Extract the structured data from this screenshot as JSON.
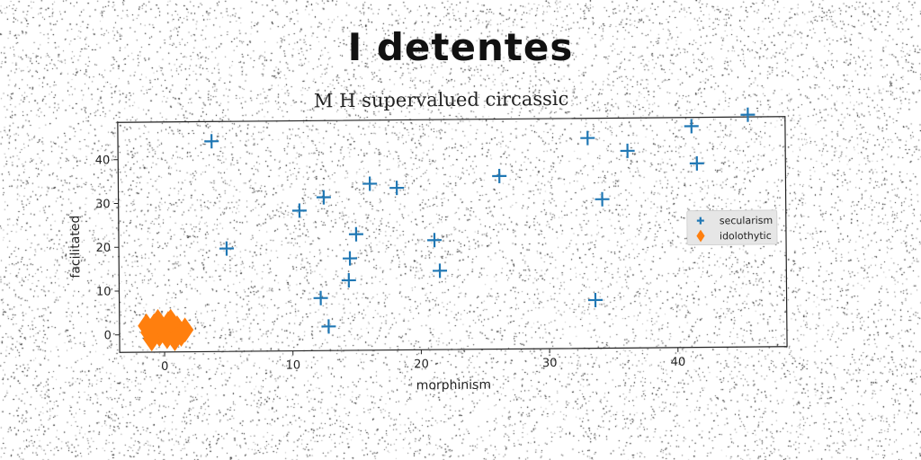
{
  "figure": {
    "title": "I detentes"
  },
  "chart_data": {
    "type": "scatter",
    "title": "M H supervalued circassic",
    "xlabel": "morphinism",
    "ylabel": "facilitated",
    "xlim": [
      -3.5,
      48.5
    ],
    "ylim": [
      -4,
      48.5
    ],
    "xticks": [
      0,
      10,
      20,
      30,
      40
    ],
    "yticks": [
      0,
      10,
      20,
      30,
      40
    ],
    "grid": false,
    "legend_position": "right",
    "series": [
      {
        "name": "secularism",
        "marker": "plus",
        "color": "#1f77b4",
        "points": [
          [
            3.8,
            44
          ],
          [
            4.9,
            19.5
          ],
          [
            10.6,
            28
          ],
          [
            12.2,
            8
          ],
          [
            12.8,
            1.5
          ],
          [
            12.5,
            31
          ],
          [
            14.5,
            17
          ],
          [
            14.4,
            12
          ],
          [
            15,
            22.5
          ],
          [
            16.1,
            34
          ],
          [
            18.2,
            33
          ],
          [
            21.1,
            21
          ],
          [
            21.5,
            14
          ],
          [
            26.2,
            35.5
          ],
          [
            33.1,
            44
          ],
          [
            33.6,
            7
          ],
          [
            34.2,
            30
          ],
          [
            36.2,
            41
          ],
          [
            41.2,
            46.5
          ],
          [
            41.6,
            38
          ],
          [
            45.6,
            49
          ]
        ]
      },
      {
        "name": "idolothytic",
        "marker": "diamond",
        "color": "#ff7f0e",
        "points": [
          [
            -1.2,
            0.5
          ],
          [
            -0.8,
            2
          ],
          [
            -0.4,
            0
          ],
          [
            0,
            1
          ],
          [
            0.3,
            2.5
          ],
          [
            0.6,
            0.5
          ],
          [
            1,
            1.5
          ],
          [
            1.3,
            0
          ],
          [
            -1,
            -1
          ],
          [
            0.2,
            -0.5
          ],
          [
            -0.5,
            3
          ],
          [
            0.8,
            -1
          ],
          [
            1.6,
            1
          ],
          [
            -1.4,
            2
          ],
          [
            0.5,
            3
          ]
        ]
      }
    ]
  }
}
